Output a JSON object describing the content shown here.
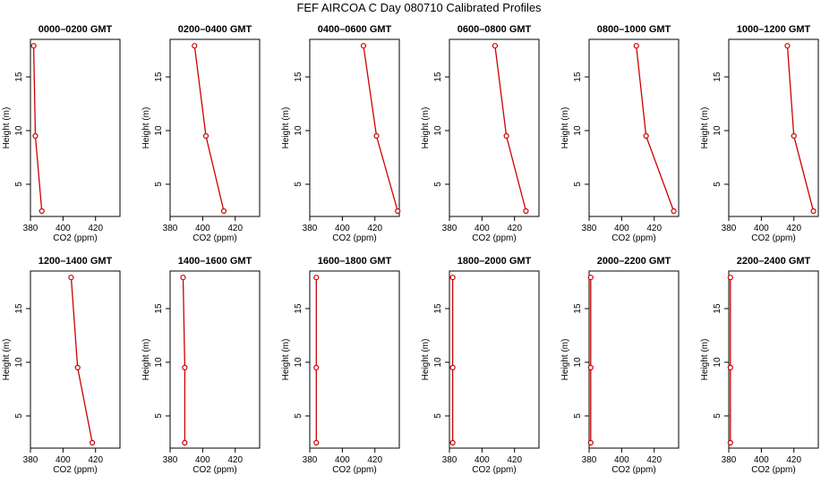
{
  "title": "FEF AIRCOA C  Day 080710  Calibrated Profiles",
  "colors": {
    "line": "#cc0000",
    "marker": "#cc0000",
    "axis": "#000000"
  },
  "chart_data": [
    {
      "type": "line",
      "title": "0000–0200 GMT",
      "xlabel": "CO2 (ppm)",
      "ylabel": "Height (m)",
      "xlim": [
        380,
        435
      ],
      "ylim": [
        2,
        18.5
      ],
      "x_ticks": [
        380,
        400,
        420
      ],
      "y_ticks": [
        5,
        10,
        15
      ],
      "points": [
        [
          382,
          17.9
        ],
        [
          383,
          9.5
        ],
        [
          387,
          2.5
        ]
      ]
    },
    {
      "type": "line",
      "title": "0200–0400 GMT",
      "xlabel": "CO2 (ppm)",
      "ylabel": "Height (m)",
      "xlim": [
        380,
        435
      ],
      "ylim": [
        2,
        18.5
      ],
      "x_ticks": [
        380,
        400,
        420
      ],
      "y_ticks": [
        5,
        10,
        15
      ],
      "points": [
        [
          395,
          17.9
        ],
        [
          402,
          9.5
        ],
        [
          413,
          2.5
        ]
      ]
    },
    {
      "type": "line",
      "title": "0400–0600 GMT",
      "xlabel": "CO2 (ppm)",
      "ylabel": "Height (m)",
      "xlim": [
        380,
        435
      ],
      "ylim": [
        2,
        18.5
      ],
      "x_ticks": [
        380,
        400,
        420
      ],
      "y_ticks": [
        5,
        10,
        15
      ],
      "points": [
        [
          413,
          17.9
        ],
        [
          421,
          9.5
        ],
        [
          434,
          2.5
        ]
      ]
    },
    {
      "type": "line",
      "title": "0600–0800 GMT",
      "xlabel": "CO2 (ppm)",
      "ylabel": "Height (m)",
      "xlim": [
        380,
        435
      ],
      "ylim": [
        2,
        18.5
      ],
      "x_ticks": [
        380,
        400,
        420
      ],
      "y_ticks": [
        5,
        10,
        15
      ],
      "points": [
        [
          408,
          17.9
        ],
        [
          415,
          9.5
        ],
        [
          427,
          2.5
        ]
      ]
    },
    {
      "type": "line",
      "title": "0800–1000 GMT",
      "xlabel": "CO2 (ppm)",
      "ylabel": "Height (m)",
      "xlim": [
        380,
        435
      ],
      "ylim": [
        2,
        18.5
      ],
      "x_ticks": [
        380,
        400,
        420
      ],
      "y_ticks": [
        5,
        10,
        15
      ],
      "points": [
        [
          409,
          17.9
        ],
        [
          415,
          9.5
        ],
        [
          432,
          2.5
        ]
      ]
    },
    {
      "type": "line",
      "title": "1000–1200 GMT",
      "xlabel": "CO2 (ppm)",
      "ylabel": "Height (m)",
      "xlim": [
        380,
        435
      ],
      "ylim": [
        2,
        18.5
      ],
      "x_ticks": [
        380,
        400,
        420
      ],
      "y_ticks": [
        5,
        10,
        15
      ],
      "points": [
        [
          416,
          17.9
        ],
        [
          420,
          9.5
        ],
        [
          432,
          2.5
        ]
      ]
    },
    {
      "type": "line",
      "title": "1200–1400 GMT",
      "xlabel": "CO2 (ppm)",
      "ylabel": "Height (m)",
      "xlim": [
        380,
        435
      ],
      "ylim": [
        2,
        18.5
      ],
      "x_ticks": [
        380,
        400,
        420
      ],
      "y_ticks": [
        5,
        10,
        15
      ],
      "points": [
        [
          405,
          17.9
        ],
        [
          409,
          9.5
        ],
        [
          418,
          2.5
        ]
      ]
    },
    {
      "type": "line",
      "title": "1400–1600 GMT",
      "xlabel": "CO2 (ppm)",
      "ylabel": "Height (m)",
      "xlim": [
        380,
        435
      ],
      "ylim": [
        2,
        18.5
      ],
      "x_ticks": [
        380,
        400,
        420
      ],
      "y_ticks": [
        5,
        10,
        15
      ],
      "points": [
        [
          388,
          17.9
        ],
        [
          389,
          9.5
        ],
        [
          389,
          2.5
        ]
      ]
    },
    {
      "type": "line",
      "title": "1600–1800 GMT",
      "xlabel": "CO2 (ppm)",
      "ylabel": "Height (m)",
      "xlim": [
        380,
        435
      ],
      "ylim": [
        2,
        18.5
      ],
      "x_ticks": [
        380,
        400,
        420
      ],
      "y_ticks": [
        5,
        10,
        15
      ],
      "points": [
        [
          384,
          17.9
        ],
        [
          384,
          9.5
        ],
        [
          384,
          2.5
        ]
      ]
    },
    {
      "type": "line",
      "title": "1800–2000 GMT",
      "xlabel": "CO2 (ppm)",
      "ylabel": "Height (m)",
      "xlim": [
        380,
        435
      ],
      "ylim": [
        2,
        18.5
      ],
      "x_ticks": [
        380,
        400,
        420
      ],
      "y_ticks": [
        5,
        10,
        15
      ],
      "points": [
        [
          382,
          17.9
        ],
        [
          382,
          9.5
        ],
        [
          382,
          2.5
        ]
      ]
    },
    {
      "type": "line",
      "title": "2000–2200 GMT",
      "xlabel": "CO2 (ppm)",
      "ylabel": "Height (m)",
      "xlim": [
        380,
        435
      ],
      "ylim": [
        2,
        18.5
      ],
      "x_ticks": [
        380,
        400,
        420
      ],
      "y_ticks": [
        5,
        10,
        15
      ],
      "points": [
        [
          381,
          17.9
        ],
        [
          381,
          9.5
        ],
        [
          381,
          2.5
        ]
      ]
    },
    {
      "type": "line",
      "title": "2200–2400 GMT",
      "xlabel": "CO2 (ppm)",
      "ylabel": "Height (m)",
      "xlim": [
        380,
        435
      ],
      "ylim": [
        2,
        18.5
      ],
      "x_ticks": [
        380,
        400,
        420
      ],
      "y_ticks": [
        5,
        10,
        15
      ],
      "points": [
        [
          381,
          17.9
        ],
        [
          381,
          9.5
        ],
        [
          381,
          2.5
        ]
      ]
    }
  ]
}
